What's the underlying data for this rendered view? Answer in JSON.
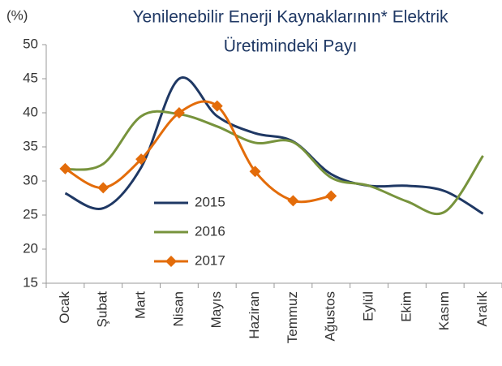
{
  "chart_data": {
    "type": "line",
    "title": "Yenilenebilir Enerji Kaynaklarının* Elektrik Üretimindeki Payı",
    "title_lines": [
      "Yenilenebilir Enerji Kaynaklarının* Elektrik",
      "Üretimindeki Payı"
    ],
    "y_label": "(%)",
    "categories": [
      "Ocak",
      "Şubat",
      "Mart",
      "Nisan",
      "Mayıs",
      "Haziran",
      "Temmuz",
      "Ağustos",
      "Eylül",
      "Ekim",
      "Kasım",
      "Aralık"
    ],
    "series": [
      {
        "name": "2015",
        "color": "#1f3864",
        "marker": false,
        "values": [
          28.2,
          26.0,
          32.0,
          45.0,
          39.5,
          37.0,
          35.8,
          31.0,
          29.3,
          29.3,
          28.5,
          25.2
        ]
      },
      {
        "name": "2016",
        "color": "#77933c",
        "marker": false,
        "values": [
          31.7,
          32.5,
          39.5,
          39.8,
          38.0,
          35.6,
          35.7,
          30.5,
          29.3,
          27.0,
          25.5,
          33.7
        ]
      },
      {
        "name": "2017",
        "color": "#e36c0a",
        "marker": true,
        "values": [
          31.8,
          29.0,
          33.2,
          40.0,
          41.0,
          31.4,
          27.1,
          27.8,
          null,
          null,
          null,
          null
        ]
      }
    ],
    "ylim": [
      15,
      50
    ],
    "yticks": [
      15,
      20,
      25,
      30,
      35,
      40,
      45,
      50
    ],
    "grid": false,
    "smooth": true
  }
}
